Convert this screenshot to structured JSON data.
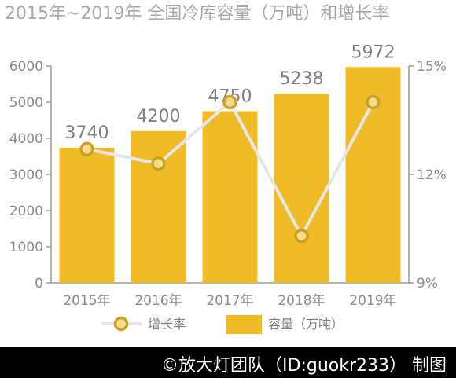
{
  "chart_data": {
    "type": "bar",
    "title": "2015年~2019年 全国冷库容量（万吨）和增长率",
    "categories": [
      "2015年",
      "2016年",
      "2017年",
      "2018年",
      "2019年"
    ],
    "series": [
      {
        "name": "容量（万吨）",
        "type": "bar",
        "axis": "left",
        "values": [
          3740,
          4200,
          4750,
          5238,
          5972
        ],
        "data_labels": [
          "3740",
          "4200",
          "4750",
          "5238",
          "5972"
        ]
      },
      {
        "name": "增长率",
        "type": "line",
        "axis": "right",
        "values": [
          12.7,
          12.3,
          14.0,
          10.3,
          14.0
        ]
      }
    ],
    "y_left": {
      "ylim": [
        0,
        6000
      ],
      "ticks": [
        0,
        1000,
        2000,
        3000,
        4000,
        5000,
        6000
      ],
      "tick_labels": [
        "0",
        "1000",
        "2000",
        "3000",
        "4000",
        "5000",
        "6000"
      ]
    },
    "y_right": {
      "ylim": [
        9,
        15
      ],
      "ticks": [
        9,
        12,
        15
      ],
      "tick_labels": [
        "9%",
        "12%",
        "15%"
      ]
    },
    "grid": false,
    "legend_position": "bottom",
    "colors": {
      "bar": "#f0bb27",
      "line": "#e6e6e6",
      "marker_stroke": "#c9a227",
      "marker_fill": "#f3dd8a",
      "axis": "#9a9a9a"
    }
  },
  "footer": {
    "credit": "©放大灯团队（ID:guokr233） 制图"
  }
}
